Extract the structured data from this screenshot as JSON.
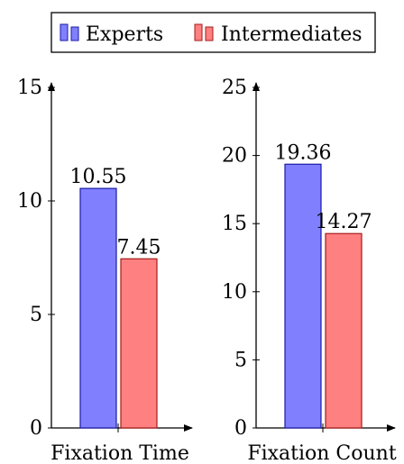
{
  "legend": {
    "entries": [
      {
        "label": "Experts",
        "fill": "#8080ff",
        "stroke": "#1a1aa6"
      },
      {
        "label": "Intermediates",
        "fill": "#ff8080",
        "stroke": "#a61a1a"
      }
    ]
  },
  "chart_data": [
    {
      "type": "bar",
      "xlabel": "Fixation Time",
      "ylim": [
        0,
        15
      ],
      "yticks": [
        0,
        5,
        10,
        15
      ],
      "grid": false,
      "series": [
        {
          "name": "Experts",
          "values": [
            10.55
          ],
          "label": "10.55"
        },
        {
          "name": "Intermediates",
          "values": [
            7.45
          ],
          "label": "7.45"
        }
      ]
    },
    {
      "type": "bar",
      "xlabel": "Fixation Count",
      "ylim": [
        0,
        25
      ],
      "yticks": [
        0,
        5,
        10,
        15,
        20,
        25
      ],
      "grid": false,
      "series": [
        {
          "name": "Experts",
          "values": [
            19.36
          ],
          "label": "19.36"
        },
        {
          "name": "Intermediates",
          "values": [
            14.27
          ],
          "label": "14.27"
        }
      ]
    }
  ]
}
